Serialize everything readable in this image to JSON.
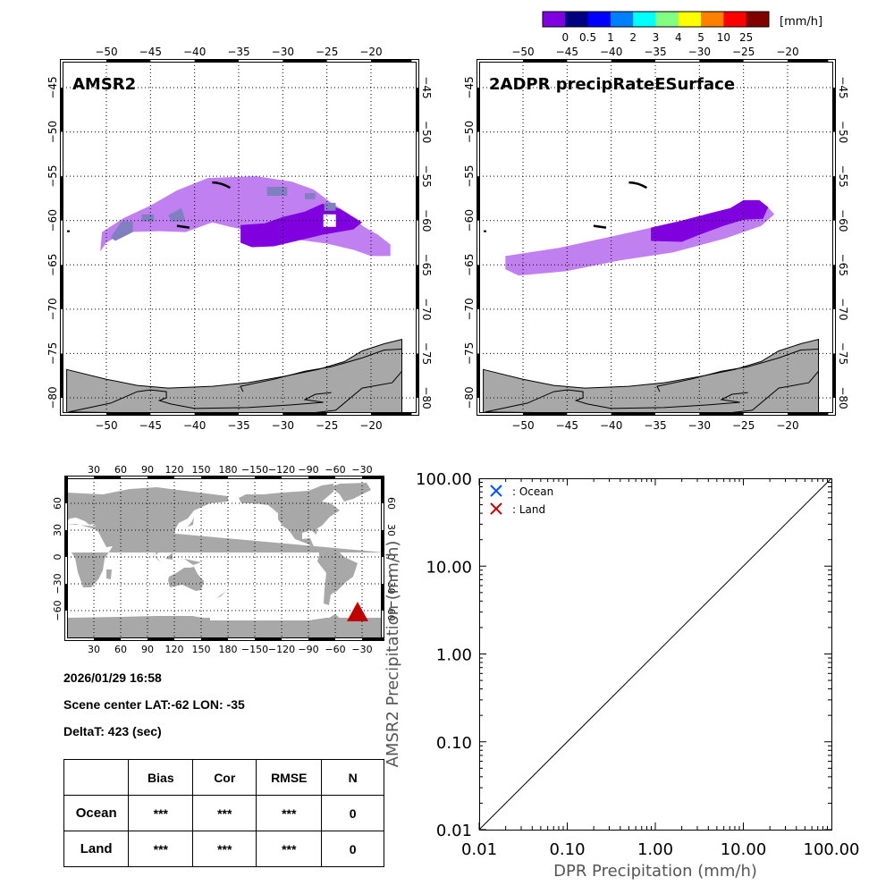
{
  "colorbar": {
    "unit": "[mm/h]",
    "colors": [
      "#8000e0",
      "#000080",
      "#0000ff",
      "#0080ff",
      "#00ffff",
      "#80ff80",
      "#ffff00",
      "#ff8000",
      "#ff0000",
      "#800000"
    ],
    "labels": [
      "0",
      "0.5",
      "1",
      "2",
      "3",
      "4",
      "5",
      "10",
      "25"
    ]
  },
  "maps": [
    {
      "title": "AMSR2",
      "lon_ticks": [
        "-50",
        "-45",
        "-40",
        "-35",
        "-30",
        "-25",
        "-20"
      ],
      "lat_ticks": [
        "-45",
        "-50",
        "-55",
        "-60",
        "-65",
        "-70",
        "-75",
        "-80"
      ]
    },
    {
      "title": "2ADPR precipRateESurface",
      "lon_ticks": [
        "-50",
        "-45",
        "-40",
        "-35",
        "-30",
        "-25",
        "-20"
      ],
      "lat_ticks": [
        "-45",
        "-50",
        "-55",
        "-60",
        "-65",
        "-70",
        "-75",
        "-80"
      ]
    }
  ],
  "precip_colors": {
    "light": "#c080f0",
    "dark": "#8000e0",
    "slate": "#8080c0",
    "land": "#a8a8a8"
  },
  "world_map": {
    "lon_ticks": [
      "30",
      "60",
      "90",
      "120",
      "150",
      "180",
      "-150",
      "-120",
      "-90",
      "-60",
      "-30"
    ],
    "lat_ticks": [
      "60",
      "30",
      "0",
      "-30",
      "-60"
    ],
    "marker": {
      "lat": -62,
      "lon": -35,
      "color": "#c00000"
    }
  },
  "info": {
    "datetime": "2026/01/29 16:58",
    "scene_center": "Scene center LAT:-62   LON: -35",
    "delta_t": "DeltaT:  423 (sec)"
  },
  "stats_table": {
    "headers": [
      "",
      "Bias",
      "Cor",
      "RMSE",
      "N"
    ],
    "rows": [
      [
        "Ocean",
        "***",
        "***",
        "***",
        "0"
      ],
      [
        "Land",
        "***",
        "***",
        "***",
        "0"
      ]
    ]
  },
  "chart_data": {
    "type": "scatter",
    "title": "",
    "xlabel": "DPR Precipitation (mm/h)",
    "ylabel": "AMSR2 Precipitation (mm/h)",
    "xscale": "log",
    "yscale": "log",
    "xlim": [
      0.01,
      100
    ],
    "ylim": [
      0.01,
      100
    ],
    "x_tick_labels": [
      "0.01",
      "0.10",
      "1.00",
      "10.00",
      "100.00"
    ],
    "y_tick_labels": [
      "0.01",
      "0.10",
      "1.00",
      "10.00",
      "100.00"
    ],
    "series": [
      {
        "name": ": Ocean",
        "color": "#0050ff",
        "marker": "x",
        "points": []
      },
      {
        "name": ": Land",
        "color": "#c00000",
        "marker": "x",
        "points": []
      }
    ],
    "reference_line": {
      "type": "1:1",
      "from": [
        0.01,
        0.01
      ],
      "to": [
        100,
        100
      ]
    },
    "legend": "top-left"
  }
}
